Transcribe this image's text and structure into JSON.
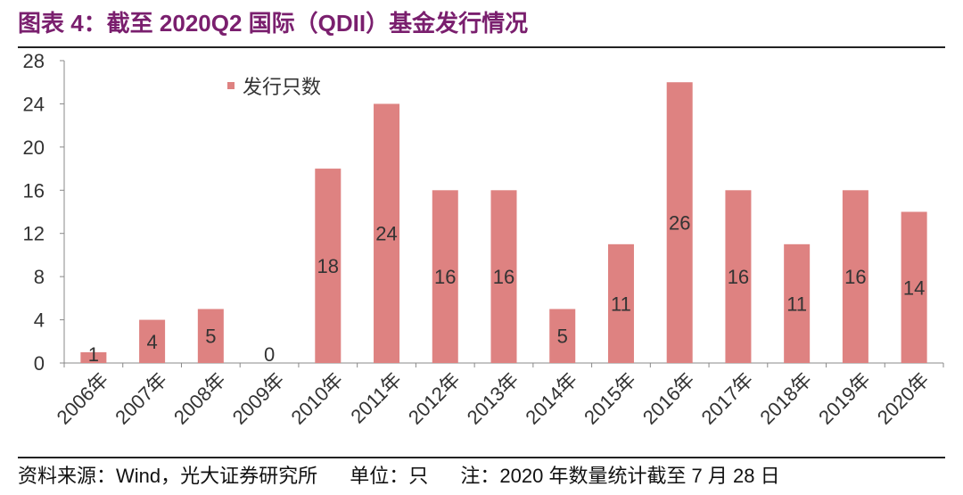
{
  "title": "图表 4：截至 2020Q2 国际（QDII）基金发行情况",
  "footer": {
    "source": "资料来源：Wind，光大证券研究所",
    "unit": "单位：只",
    "note": "注：2020 年数量统计截至 7 月 28 日"
  },
  "colors": {
    "bar": "#de8281",
    "title": "#7a1f6e"
  },
  "chart_data": {
    "type": "bar",
    "categories": [
      "2006年",
      "2007年",
      "2008年",
      "2009年",
      "2010年",
      "2011年",
      "2012年",
      "2013年",
      "2014年",
      "2015年",
      "2016年",
      "2017年",
      "2018年",
      "2019年",
      "2020年"
    ],
    "series": [
      {
        "name": "发行只数",
        "values": [
          1,
          4,
          5,
          0,
          18,
          24,
          16,
          16,
          5,
          11,
          26,
          16,
          11,
          16,
          14
        ]
      }
    ],
    "ylim": [
      0,
      28
    ],
    "yticks": [
      0,
      4,
      8,
      12,
      16,
      20,
      24,
      28
    ],
    "legend": "top-left",
    "grid": false
  }
}
